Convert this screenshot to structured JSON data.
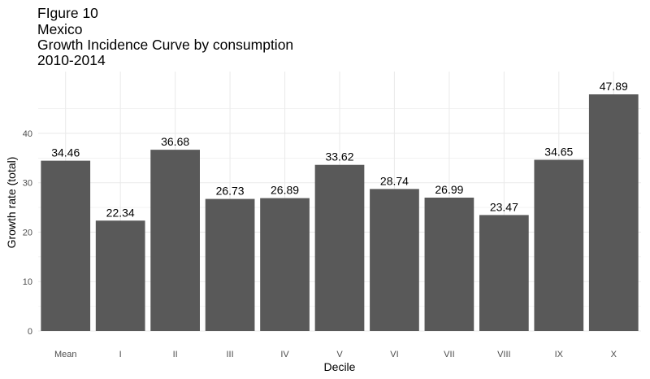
{
  "chart_data": {
    "type": "bar",
    "title_lines": [
      "FIgure 10",
      "Mexico",
      "Growth Incidence Curve by consumption",
      "2010-2014"
    ],
    "xlabel": "Decile",
    "ylabel": "Growth rate (total)",
    "categories": [
      "Mean",
      "I",
      "II",
      "III",
      "IV",
      "V",
      "VI",
      "VII",
      "VIII",
      "IX",
      "X"
    ],
    "values": [
      34.46,
      22.34,
      36.68,
      26.73,
      26.89,
      33.62,
      28.74,
      26.99,
      23.47,
      34.65,
      47.89
    ],
    "data_labels": [
      "34.46",
      "22.34",
      "36.68",
      "26.73",
      "26.89",
      "33.62",
      "28.74",
      "26.99",
      "23.47",
      "34.65",
      "47.89"
    ],
    "yticks": [
      0,
      10,
      20,
      30,
      40
    ],
    "ytick_labels": [
      "0",
      "10",
      "20",
      "30",
      "40"
    ],
    "ylim": [
      0,
      52.5
    ],
    "grid": true,
    "legend": "none",
    "bar_color": "#595959",
    "grid_color": "#ebebeb"
  }
}
